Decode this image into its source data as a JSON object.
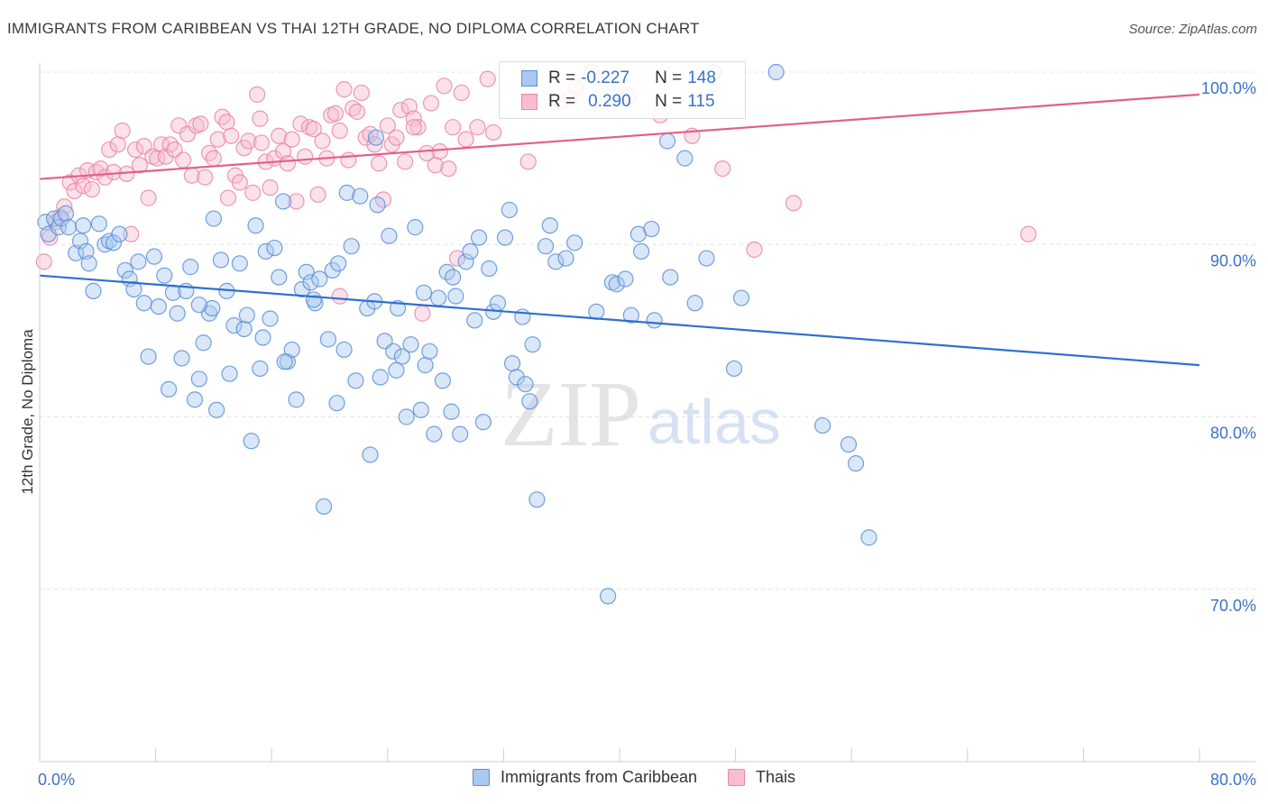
{
  "title": "IMMIGRANTS FROM CARIBBEAN VS THAI 12TH GRADE, NO DIPLOMA CORRELATION CHART",
  "source": "Source: ZipAtlas.com",
  "watermark": {
    "zip": "ZIP",
    "atlas": "atlas"
  },
  "legend_top": {
    "row1": {
      "r_label": "R =",
      "r_value": "-0.227",
      "n_label": "N =",
      "n_value": "148"
    },
    "row2": {
      "r_label": "R =",
      "r_value": "0.290",
      "n_label": "N =",
      "n_value": "115"
    }
  },
  "colors": {
    "blue_fill": "#aac9f0",
    "blue_stroke": "#5b8fd6",
    "blue_line": "#2f6fd0",
    "pink_fill": "#f7bdd0",
    "pink_stroke": "#ea86a6",
    "pink_line": "#e0608c",
    "axis_text": "#3a72c8"
  },
  "chart_data": {
    "type": "scatter",
    "title": "IMMIGRANTS FROM CARIBBEAN VS THAI 12TH GRADE, NO DIPLOMA CORRELATION CHART",
    "xlabel": "",
    "ylabel": "12th Grade, No Diploma",
    "xlim": [
      0,
      80
    ],
    "ylim": [
      60,
      100
    ],
    "x_tick_labels": [
      "0.0%",
      "80.0%"
    ],
    "y_ticks": [
      70,
      80,
      90,
      100
    ],
    "y_tick_labels": [
      "70.0%",
      "80.0%",
      "90.0%",
      "100.0%"
    ],
    "grid": true,
    "legend_position": "bottom",
    "series": [
      {
        "name": "Immigrants from Caribbean",
        "color": "#5b8fd6",
        "r": -0.227,
        "n": 148,
        "trend": {
          "x": [
            0,
            80
          ],
          "y": [
            88.2,
            83.0
          ]
        },
        "points": [
          [
            0.4,
            91.3
          ],
          [
            0.6,
            90.6
          ],
          [
            1.0,
            91.5
          ],
          [
            1.3,
            91.0
          ],
          [
            1.5,
            91.5
          ],
          [
            1.8,
            91.8
          ],
          [
            2.0,
            91.0
          ],
          [
            2.5,
            89.5
          ],
          [
            2.8,
            90.2
          ],
          [
            3.0,
            91.1
          ],
          [
            3.2,
            89.6
          ],
          [
            3.4,
            88.9
          ],
          [
            3.7,
            87.3
          ],
          [
            4.1,
            91.2
          ],
          [
            4.5,
            90.0
          ],
          [
            4.8,
            90.2
          ],
          [
            5.1,
            90.1
          ],
          [
            5.5,
            90.6
          ],
          [
            5.9,
            88.5
          ],
          [
            6.2,
            88.0
          ],
          [
            6.5,
            87.4
          ],
          [
            6.8,
            89.0
          ],
          [
            7.2,
            86.6
          ],
          [
            7.5,
            83.5
          ],
          [
            7.9,
            89.3
          ],
          [
            8.2,
            86.4
          ],
          [
            8.6,
            88.2
          ],
          [
            8.9,
            81.6
          ],
          [
            9.2,
            87.2
          ],
          [
            9.5,
            86.0
          ],
          [
            9.8,
            83.4
          ],
          [
            10.1,
            87.3
          ],
          [
            10.4,
            88.7
          ],
          [
            10.7,
            81.0
          ],
          [
            11.0,
            82.2
          ],
          [
            11.3,
            84.3
          ],
          [
            11.7,
            86.0
          ],
          [
            11.9,
            86.3
          ],
          [
            12.2,
            80.4
          ],
          [
            12.5,
            89.1
          ],
          [
            12.9,
            87.3
          ],
          [
            13.1,
            82.5
          ],
          [
            13.4,
            85.3
          ],
          [
            13.8,
            88.9
          ],
          [
            14.1,
            85.1
          ],
          [
            14.3,
            85.9
          ],
          [
            14.6,
            78.6
          ],
          [
            14.9,
            91.1
          ],
          [
            15.2,
            82.8
          ],
          [
            15.6,
            89.6
          ],
          [
            15.9,
            85.7
          ],
          [
            16.2,
            89.8
          ],
          [
            16.5,
            88.1
          ],
          [
            16.8,
            92.5
          ],
          [
            17.1,
            83.2
          ],
          [
            17.4,
            83.9
          ],
          [
            17.7,
            81.0
          ],
          [
            18.1,
            87.4
          ],
          [
            18.4,
            88.4
          ],
          [
            18.7,
            87.8
          ],
          [
            19.0,
            86.6
          ],
          [
            19.3,
            88.0
          ],
          [
            19.6,
            74.8
          ],
          [
            19.9,
            84.5
          ],
          [
            20.2,
            88.5
          ],
          [
            20.5,
            80.8
          ],
          [
            21.0,
            83.9
          ],
          [
            21.2,
            93.0
          ],
          [
            21.5,
            89.9
          ],
          [
            21.8,
            82.1
          ],
          [
            22.1,
            92.8
          ],
          [
            22.6,
            86.3
          ],
          [
            22.8,
            77.8
          ],
          [
            23.1,
            86.7
          ],
          [
            23.3,
            92.3
          ],
          [
            23.5,
            82.3
          ],
          [
            23.8,
            84.4
          ],
          [
            24.1,
            90.5
          ],
          [
            24.4,
            83.8
          ],
          [
            24.7,
            86.3
          ],
          [
            25.0,
            83.5
          ],
          [
            25.3,
            80.0
          ],
          [
            25.6,
            84.2
          ],
          [
            25.9,
            91.0
          ],
          [
            26.3,
            80.4
          ],
          [
            26.6,
            83.0
          ],
          [
            26.9,
            83.8
          ],
          [
            27.2,
            79.0
          ],
          [
            27.5,
            86.9
          ],
          [
            27.8,
            82.1
          ],
          [
            28.1,
            88.4
          ],
          [
            28.4,
            80.3
          ],
          [
            28.7,
            87.0
          ],
          [
            29.0,
            79.0
          ],
          [
            29.4,
            89.0
          ],
          [
            29.7,
            89.6
          ],
          [
            30.0,
            85.6
          ],
          [
            30.3,
            90.4
          ],
          [
            30.6,
            79.7
          ],
          [
            31.0,
            88.6
          ],
          [
            31.3,
            86.1
          ],
          [
            31.6,
            86.6
          ],
          [
            32.1,
            90.4
          ],
          [
            32.4,
            92.0
          ],
          [
            32.6,
            83.1
          ],
          [
            32.9,
            82.3
          ],
          [
            33.3,
            85.8
          ],
          [
            33.5,
            81.9
          ],
          [
            33.8,
            80.9
          ],
          [
            34.0,
            84.2
          ],
          [
            34.3,
            75.2
          ],
          [
            34.9,
            89.9
          ],
          [
            35.2,
            91.1
          ],
          [
            35.6,
            89.0
          ],
          [
            36.3,
            89.2
          ],
          [
            36.9,
            90.1
          ],
          [
            38.4,
            86.1
          ],
          [
            39.2,
            69.6
          ],
          [
            39.5,
            87.8
          ],
          [
            39.8,
            87.7
          ],
          [
            40.4,
            88.0
          ],
          [
            40.8,
            85.9
          ],
          [
            41.3,
            90.6
          ],
          [
            41.5,
            89.6
          ],
          [
            42.2,
            90.9
          ],
          [
            42.4,
            85.6
          ],
          [
            43.5,
            88.1
          ],
          [
            44.5,
            95.0
          ],
          [
            45.2,
            86.6
          ],
          [
            46.0,
            89.2
          ],
          [
            47.9,
            82.8
          ],
          [
            48.4,
            86.9
          ],
          [
            54.0,
            79.5
          ],
          [
            55.8,
            78.4
          ],
          [
            56.3,
            77.3
          ],
          [
            57.2,
            73.0
          ],
          [
            23.2,
            96.2
          ],
          [
            26.5,
            87.2
          ],
          [
            18.9,
            86.8
          ],
          [
            20.6,
            88.9
          ],
          [
            16.9,
            83.2
          ],
          [
            15.4,
            84.6
          ],
          [
            24.6,
            82.7
          ],
          [
            12.0,
            91.5
          ],
          [
            11.0,
            86.5
          ],
          [
            28.5,
            88.1
          ],
          [
            50.8,
            100.0
          ],
          [
            46.5,
            100.0
          ],
          [
            43.3,
            96.0
          ]
        ]
      },
      {
        "name": "Thais",
        "color": "#ea86a6",
        "r": 0.29,
        "n": 115,
        "trend": {
          "x": [
            0,
            80
          ],
          "y": [
            93.8,
            98.7
          ]
        },
        "points": [
          [
            0.3,
            89.0
          ],
          [
            0.7,
            90.4
          ],
          [
            1.1,
            91.3
          ],
          [
            1.4,
            91.6
          ],
          [
            1.7,
            92.2
          ],
          [
            2.1,
            93.6
          ],
          [
            2.4,
            93.1
          ],
          [
            2.7,
            94.0
          ],
          [
            3.0,
            93.4
          ],
          [
            3.3,
            94.3
          ],
          [
            3.6,
            93.2
          ],
          [
            3.9,
            94.2
          ],
          [
            4.2,
            94.4
          ],
          [
            4.5,
            93.9
          ],
          [
            4.8,
            95.5
          ],
          [
            5.1,
            94.2
          ],
          [
            5.4,
            95.8
          ],
          [
            5.7,
            96.6
          ],
          [
            6.0,
            94.1
          ],
          [
            6.3,
            90.6
          ],
          [
            6.6,
            95.5
          ],
          [
            6.9,
            94.6
          ],
          [
            7.2,
            95.7
          ],
          [
            7.5,
            92.7
          ],
          [
            7.8,
            95.1
          ],
          [
            8.1,
            95.0
          ],
          [
            8.4,
            95.8
          ],
          [
            8.7,
            95.1
          ],
          [
            9.0,
            95.8
          ],
          [
            9.3,
            95.5
          ],
          [
            9.6,
            96.9
          ],
          [
            9.9,
            94.9
          ],
          [
            10.2,
            96.4
          ],
          [
            10.5,
            94.0
          ],
          [
            10.8,
            96.9
          ],
          [
            11.1,
            97.0
          ],
          [
            11.4,
            93.9
          ],
          [
            11.7,
            95.3
          ],
          [
            12.0,
            95.0
          ],
          [
            12.3,
            96.1
          ],
          [
            12.6,
            97.4
          ],
          [
            12.9,
            97.1
          ],
          [
            13.2,
            96.3
          ],
          [
            13.5,
            94.0
          ],
          [
            13.8,
            93.6
          ],
          [
            14.1,
            95.6
          ],
          [
            14.4,
            96.0
          ],
          [
            14.7,
            93.0
          ],
          [
            15.0,
            98.7
          ],
          [
            15.3,
            95.9
          ],
          [
            15.6,
            94.8
          ],
          [
            15.9,
            93.3
          ],
          [
            16.2,
            95.0
          ],
          [
            16.5,
            96.3
          ],
          [
            16.8,
            95.4
          ],
          [
            17.1,
            94.7
          ],
          [
            17.4,
            96.1
          ],
          [
            17.7,
            92.5
          ],
          [
            18.0,
            97.0
          ],
          [
            18.3,
            95.1
          ],
          [
            18.6,
            96.8
          ],
          [
            18.9,
            96.7
          ],
          [
            19.2,
            92.9
          ],
          [
            19.5,
            96.0
          ],
          [
            19.8,
            95.0
          ],
          [
            20.1,
            97.5
          ],
          [
            20.4,
            97.6
          ],
          [
            20.7,
            96.6
          ],
          [
            21.0,
            99.0
          ],
          [
            21.3,
            94.9
          ],
          [
            21.6,
            97.9
          ],
          [
            21.9,
            97.7
          ],
          [
            22.2,
            98.8
          ],
          [
            22.5,
            96.2
          ],
          [
            22.8,
            96.4
          ],
          [
            23.1,
            95.8
          ],
          [
            23.4,
            94.7
          ],
          [
            23.7,
            92.6
          ],
          [
            24.0,
            96.9
          ],
          [
            24.3,
            95.8
          ],
          [
            24.6,
            96.2
          ],
          [
            24.9,
            97.8
          ],
          [
            25.2,
            94.8
          ],
          [
            25.5,
            98.0
          ],
          [
            25.8,
            97.3
          ],
          [
            26.1,
            96.8
          ],
          [
            26.4,
            86.0
          ],
          [
            26.7,
            95.3
          ],
          [
            27.0,
            98.2
          ],
          [
            27.3,
            94.6
          ],
          [
            27.6,
            95.4
          ],
          [
            27.9,
            99.2
          ],
          [
            28.2,
            94.4
          ],
          [
            28.5,
            96.8
          ],
          [
            28.8,
            89.2
          ],
          [
            29.1,
            98.8
          ],
          [
            29.4,
            96.1
          ],
          [
            30.2,
            96.8
          ],
          [
            31.3,
            96.5
          ],
          [
            33.7,
            94.8
          ],
          [
            36.0,
            98.3
          ],
          [
            37.0,
            99.1
          ],
          [
            40.6,
            98.6
          ],
          [
            42.8,
            97.5
          ],
          [
            45.0,
            96.3
          ],
          [
            47.1,
            94.4
          ],
          [
            49.3,
            89.7
          ],
          [
            52.0,
            92.4
          ],
          [
            68.2,
            90.6
          ],
          [
            38.1,
            100.0
          ],
          [
            36.6,
            98.5
          ],
          [
            25.8,
            96.8
          ],
          [
            20.7,
            87.0
          ],
          [
            15.2,
            97.3
          ],
          [
            13.0,
            92.7
          ],
          [
            30.9,
            99.6
          ]
        ]
      }
    ]
  },
  "bottom_legend": [
    "Immigrants from Caribbean",
    "Thais"
  ]
}
